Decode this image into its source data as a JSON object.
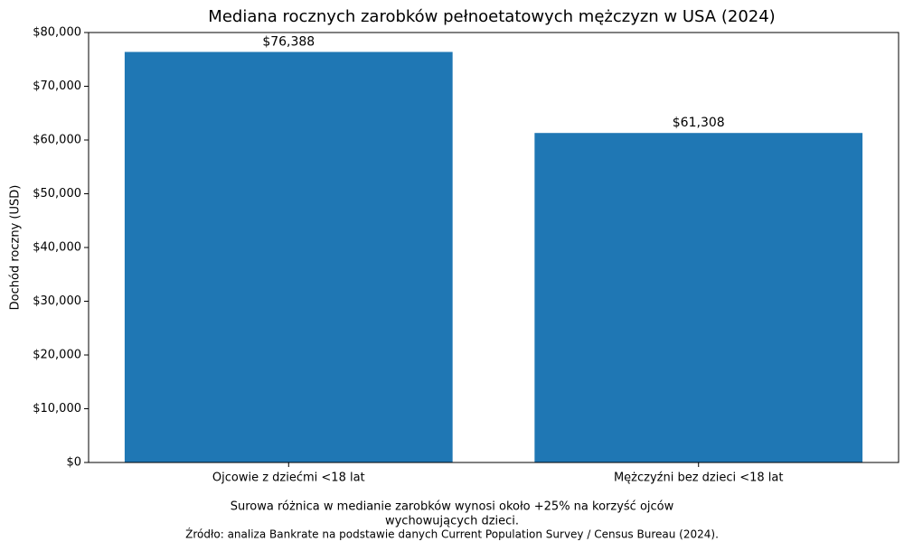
{
  "chart_data": {
    "type": "bar",
    "title": "Mediana rocznych zarobków pełnoetatowych mężczyzn w USA (2024)",
    "ylabel": "Dochód roczny (USD)",
    "categories": [
      "Ojcowie z dziećmi <18 lat",
      "Mężczyźni bez dzieci <18 lat"
    ],
    "values": [
      76388,
      61308
    ],
    "value_labels": [
      "$76,388",
      "$61,308"
    ],
    "color": "#1f77b4",
    "ylim": [
      0,
      80000
    ],
    "yticks": [
      {
        "value": 0,
        "label": "$0"
      },
      {
        "value": 10000,
        "label": "$10,000"
      },
      {
        "value": 20000,
        "label": "$20,000"
      },
      {
        "value": 30000,
        "label": "$30,000"
      },
      {
        "value": 40000,
        "label": "$40,000"
      },
      {
        "value": 50000,
        "label": "$50,000"
      },
      {
        "value": 60000,
        "label": "$60,000"
      },
      {
        "value": 70000,
        "label": "$70,000"
      },
      {
        "value": 80000,
        "label": "$80,000"
      }
    ],
    "annotation": [
      "Surowa różnica w medianie zarobków wynosi około +25% na korzyść ojców",
      "wychowujących dzieci."
    ],
    "source": "Źródło: analiza Bankrate na podstawie danych Current Population Survey / Census Bureau (2024)."
  }
}
